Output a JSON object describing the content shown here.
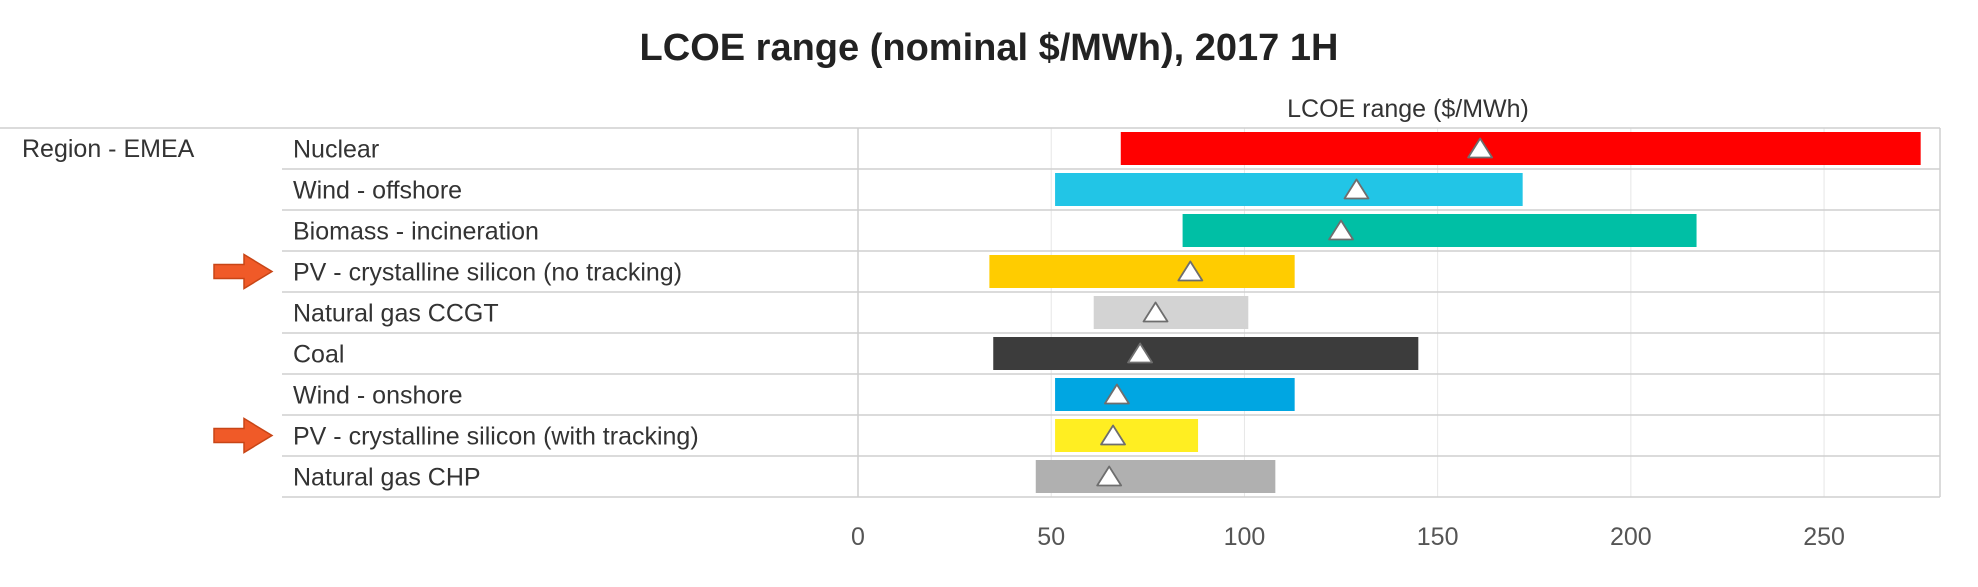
{
  "chart_data": {
    "type": "bar",
    "title": "LCOE range (nominal $/MWh), 2017 1H",
    "axis_title": "LCOE range ($/MWh)",
    "region_label": "Region - EMEA",
    "xlim": [
      0,
      280
    ],
    "xticks": [
      0,
      50,
      100,
      150,
      200,
      250
    ],
    "grid": true,
    "legend": "none",
    "categories": [
      "Nuclear",
      "Wind - offshore",
      "Biomass - incineration",
      "PV - crystalline silicon (no tracking)",
      "Natural gas CCGT",
      "Coal",
      "Wind - onshore",
      "PV - crystalline silicon (with tracking)",
      "Natural gas CHP"
    ],
    "series": [
      {
        "low": [
          68,
          51,
          84,
          34,
          61,
          35,
          51,
          51,
          46
        ],
        "high": [
          275,
          172,
          217,
          113,
          101,
          145,
          113,
          88,
          108
        ],
        "mid": [
          161,
          129,
          125,
          86,
          77,
          73,
          67,
          66,
          65
        ]
      }
    ],
    "bar_colors": [
      "#ff0000",
      "#22c5e6",
      "#00bfa5",
      "#ffcc00",
      "#d3d3d3",
      "#3c3c3c",
      "#00a6e2",
      "#ffee22",
      "#b0b0b0"
    ],
    "highlighted": [
      false,
      false,
      false,
      true,
      false,
      false,
      false,
      true,
      false
    ],
    "arrow_color": "#f05a28"
  }
}
